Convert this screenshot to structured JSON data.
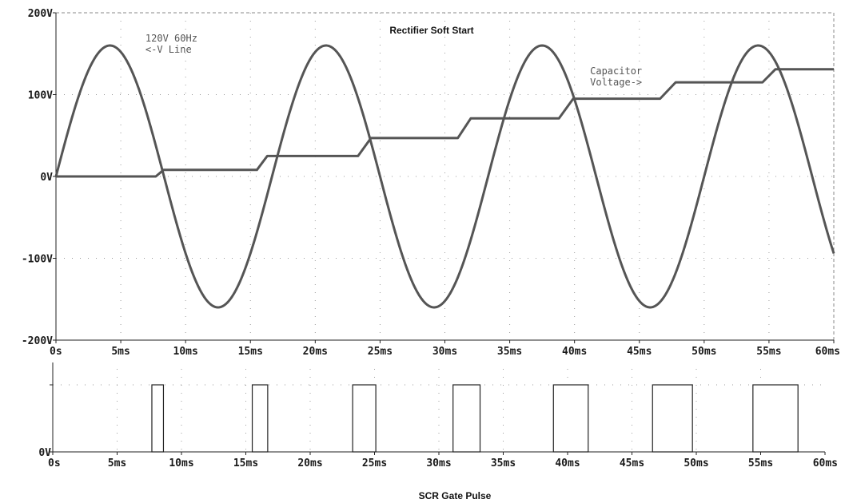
{
  "chart_data": [
    {
      "type": "line",
      "title": "Rectifier Soft Start",
      "xlim": [
        0,
        60
      ],
      "x_unit": "ms",
      "ylim": [
        -200,
        200
      ],
      "y_unit": "V",
      "x_ticks": [
        "0s",
        "5ms",
        "10ms",
        "15ms",
        "20ms",
        "25ms",
        "30ms",
        "35ms",
        "40ms",
        "45ms",
        "50ms",
        "55ms",
        "60ms"
      ],
      "y_ticks": [
        "200V",
        "100V",
        "0V",
        "-100V",
        "-200V"
      ],
      "grid": "dotted",
      "series": [
        {
          "name": "120V 60Hz <-V Line",
          "kind": "sine",
          "amplitude": 160,
          "frequency_hz": 60,
          "color": "#555555"
        },
        {
          "name": "Capacitor Voltage->",
          "kind": "step-ramp",
          "color": "#555555",
          "points": [
            [
              0,
              0
            ],
            [
              7.7,
              0
            ],
            [
              8.3,
              8
            ],
            [
              15.5,
              8
            ],
            [
              16.3,
              25
            ],
            [
              23.3,
              25
            ],
            [
              24.3,
              47
            ],
            [
              31,
              47
            ],
            [
              32,
              71
            ],
            [
              38.8,
              71
            ],
            [
              39.9,
              95
            ],
            [
              46.6,
              95
            ],
            [
              47.8,
              115
            ],
            [
              54.5,
              115
            ],
            [
              55.5,
              131
            ],
            [
              60,
              131
            ]
          ]
        }
      ],
      "annotations": [
        {
          "text_lines": [
            "120V 60Hz",
            "<-V Line"
          ],
          "x": 6.9,
          "y": 165
        },
        {
          "text_lines": [
            "Capacitor",
            "Voltage->"
          ],
          "x": 41.2,
          "y": 125
        }
      ]
    },
    {
      "type": "line",
      "title": "SCR Gate Pulse",
      "xlim": [
        0,
        60
      ],
      "x_unit": "ms",
      "x_ticks": [
        "0s",
        "5ms",
        "10ms",
        "15ms",
        "20ms",
        "25ms",
        "30ms",
        "35ms",
        "40ms",
        "45ms",
        "50ms",
        "55ms",
        "60ms"
      ],
      "y_ticks": [
        "0V"
      ],
      "grid": "dotted",
      "pulses": [
        [
          7.7,
          8.6
        ],
        [
          15.5,
          16.7
        ],
        [
          23.3,
          25.1
        ],
        [
          31.1,
          33.2
        ],
        [
          38.9,
          41.6
        ],
        [
          46.6,
          49.7
        ],
        [
          54.4,
          57.9
        ]
      ],
      "pulse_level": 0.75,
      "color": "#222222"
    }
  ]
}
